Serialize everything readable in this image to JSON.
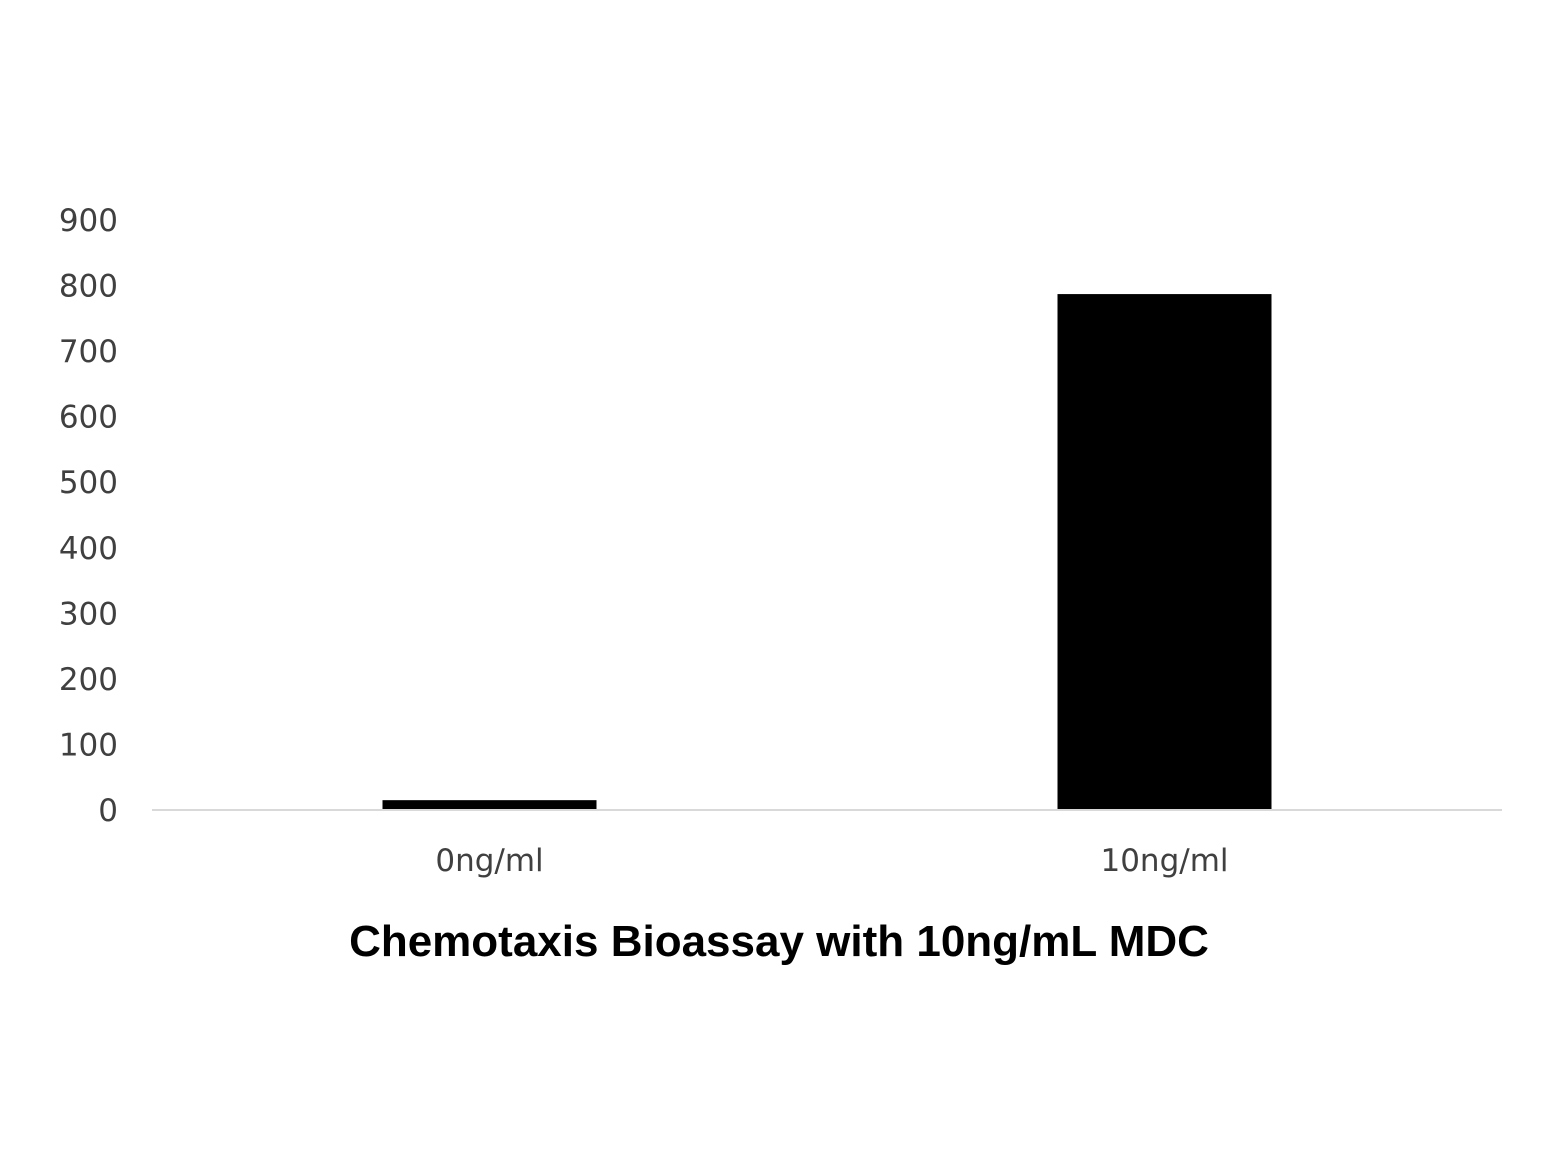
{
  "chart_data": {
    "type": "bar",
    "title": "",
    "caption": "Chemotaxis Bioassay with 10ng/mL MDC",
    "xlabel": "",
    "ylabel": "",
    "categories": [
      "0ng/ml",
      "10ng/ml"
    ],
    "values": [
      15,
      787
    ],
    "ylim": [
      0,
      900
    ],
    "yticks": [
      0,
      100,
      200,
      300,
      400,
      500,
      600,
      700,
      800,
      900
    ],
    "grid": false,
    "legend": "none",
    "colors": {
      "bar": "#000000",
      "axis": "#d9d9d9",
      "text": "#404040"
    }
  }
}
